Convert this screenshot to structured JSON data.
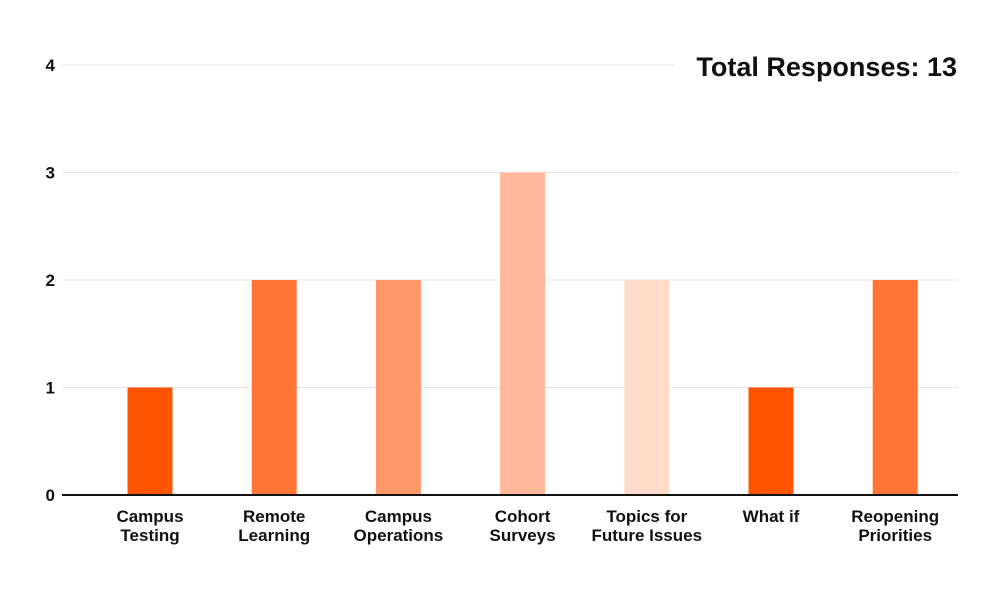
{
  "chart_data": {
    "type": "bar",
    "categories": [
      [
        "Campus",
        "Testing"
      ],
      [
        "Remote",
        "Learning"
      ],
      [
        "Campus",
        "Operations"
      ],
      [
        "Cohort",
        "Surveys"
      ],
      [
        "Topics for",
        "Future Issues"
      ],
      [
        "What if"
      ],
      [
        "Reopening",
        "Priorities"
      ]
    ],
    "values": [
      1,
      2,
      2,
      3,
      2,
      1,
      2
    ],
    "colors": [
      "#ff5400",
      "#ff7536",
      "#ff9869",
      "#ffb899",
      "#ffdcca",
      "#ff5400",
      "#ff7536"
    ],
    "yticks": [
      0,
      1,
      2,
      3,
      4
    ],
    "ylim": [
      0,
      4
    ],
    "grid": true,
    "title": "",
    "xlabel": "",
    "ylabel": ""
  },
  "annotation": {
    "label": "Total Responses:",
    "value": "13"
  }
}
